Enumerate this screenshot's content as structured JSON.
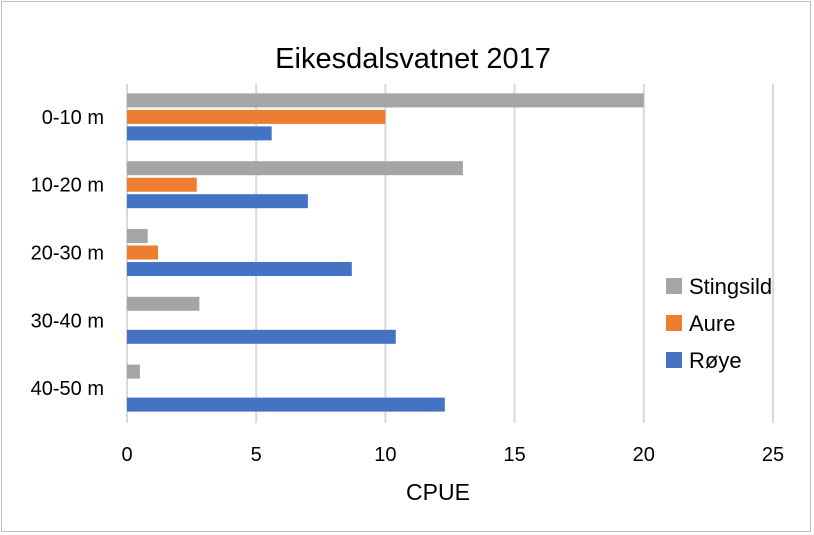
{
  "chart_data": {
    "type": "bar",
    "orientation": "horizontal",
    "title": "Eikesdalsvatnet 2017",
    "xlabel": "CPUE",
    "ylabel": "",
    "xlim": [
      0,
      25
    ],
    "xticks": [
      0,
      5,
      10,
      15,
      20,
      25
    ],
    "grid": true,
    "legend_position": "right",
    "categories": [
      "0-10 m",
      "10-20 m",
      "20-30 m",
      "30-40 m",
      "40-50 m"
    ],
    "series": [
      {
        "name": "Stingsild",
        "color": "#a5a5a5",
        "values": [
          20.0,
          13.0,
          0.8,
          2.8,
          0.5
        ]
      },
      {
        "name": "Aure",
        "color": "#ed7d31",
        "values": [
          10.0,
          2.7,
          1.2,
          0,
          0
        ]
      },
      {
        "name": "Røye",
        "color": "#4472c4",
        "values": [
          5.6,
          7.0,
          8.7,
          10.4,
          12.3
        ]
      }
    ]
  }
}
